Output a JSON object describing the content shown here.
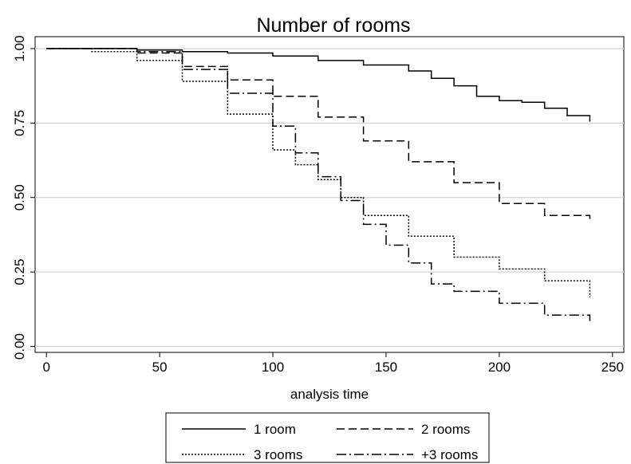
{
  "chart_data": {
    "type": "line",
    "title": "Number of rooms",
    "xlabel": "analysis time",
    "ylabel": "",
    "xlim": [
      -5,
      255
    ],
    "ylim": [
      -0.02,
      1.04
    ],
    "xticks": [
      0,
      50,
      100,
      150,
      200,
      250
    ],
    "yticks": [
      0.0,
      0.25,
      0.5,
      0.75,
      1.0
    ],
    "ytick_labels": [
      "0.00",
      "0.25",
      "0.50",
      "0.75",
      "1.00"
    ],
    "grid": "horizontal",
    "legend_position": "bottom",
    "series": [
      {
        "name": "1 room",
        "style": "solid",
        "x": [
          0,
          20,
          40,
          60,
          80,
          100,
          120,
          140,
          160,
          170,
          180,
          190,
          200,
          210,
          220,
          230,
          240
        ],
        "y": [
          1.0,
          1.0,
          0.995,
          0.99,
          0.985,
          0.975,
          0.96,
          0.945,
          0.925,
          0.9,
          0.875,
          0.84,
          0.825,
          0.82,
          0.8,
          0.775,
          0.755
        ]
      },
      {
        "name": "2 rooms",
        "style": "dashed",
        "x": [
          0,
          20,
          40,
          60,
          80,
          100,
          120,
          140,
          160,
          180,
          200,
          220,
          240
        ],
        "y": [
          1.0,
          1.0,
          0.985,
          0.94,
          0.895,
          0.84,
          0.77,
          0.69,
          0.62,
          0.55,
          0.48,
          0.44,
          0.42
        ]
      },
      {
        "name": "3 rooms",
        "style": "dotted",
        "x": [
          0,
          20,
          40,
          60,
          80,
          100,
          110,
          120,
          130,
          140,
          160,
          180,
          200,
          220,
          240
        ],
        "y": [
          1.0,
          0.99,
          0.96,
          0.89,
          0.78,
          0.66,
          0.61,
          0.56,
          0.5,
          0.44,
          0.37,
          0.3,
          0.26,
          0.22,
          0.165
        ]
      },
      {
        "name": "+3 rooms",
        "style": "dashdot",
        "x": [
          0,
          20,
          40,
          60,
          80,
          100,
          110,
          120,
          130,
          140,
          150,
          160,
          170,
          180,
          200,
          220,
          240
        ],
        "y": [
          1.0,
          1.0,
          0.99,
          0.93,
          0.85,
          0.74,
          0.65,
          0.57,
          0.49,
          0.41,
          0.34,
          0.28,
          0.21,
          0.185,
          0.145,
          0.105,
          0.085
        ]
      }
    ]
  }
}
